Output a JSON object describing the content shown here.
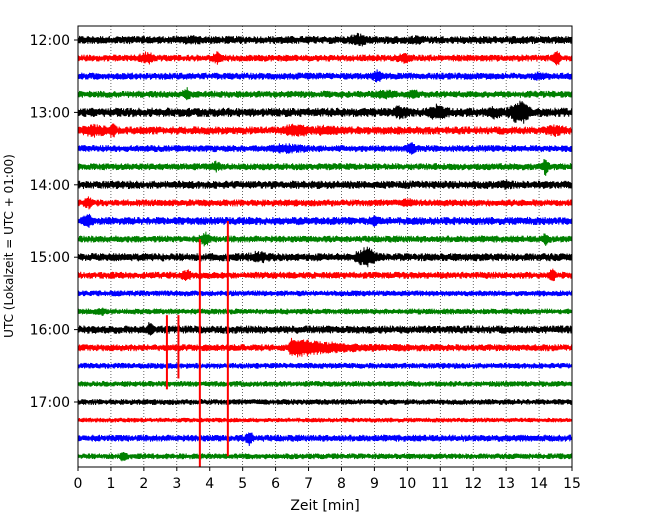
{
  "chart_data": {
    "type": "helicorder",
    "xlabel": "Zeit  [min]",
    "ylabel": "UTC (Lokalzeit = UTC + 01:00)",
    "xlim": [
      0,
      15
    ],
    "x_ticks": [
      "0",
      "1",
      "2",
      "3",
      "4",
      "5",
      "6",
      "7",
      "8",
      "9",
      "10",
      "11",
      "12",
      "13",
      "14",
      "15"
    ],
    "row_interval_min": 15,
    "row_start": "12:00",
    "y_tick_labels": [
      "12:00",
      "13:00",
      "14:00",
      "15:00",
      "16:00",
      "17:00"
    ],
    "y_tick_rows": [
      0,
      4,
      8,
      12,
      16,
      20
    ],
    "grid": "vertical dotted",
    "color_cycle": [
      "#000000",
      "#ff0000",
      "#0000ff",
      "#008000"
    ],
    "rows": [
      {
        "start": "12:00",
        "color": "#000000",
        "noise": 0.35,
        "events": [
          {
            "t": 8.5,
            "amp": 0.45,
            "dur": 0.3
          },
          {
            "t": 10.3,
            "amp": 0.3,
            "dur": 0.2
          },
          {
            "t": 3.5,
            "amp": 0.15,
            "dur": 0.4
          }
        ]
      },
      {
        "start": "12:15",
        "color": "#ff0000",
        "noise": 0.3,
        "events": [
          {
            "t": 2.1,
            "amp": 0.5,
            "dur": 0.3
          },
          {
            "t": 4.25,
            "amp": 0.45,
            "dur": 0.2
          },
          {
            "t": 9.9,
            "amp": 0.35,
            "dur": 0.3
          },
          {
            "t": 14.55,
            "amp": 0.8,
            "dur": 0.15
          }
        ]
      },
      {
        "start": "12:30",
        "color": "#0000ff",
        "noise": 0.3,
        "events": [
          {
            "t": 9.1,
            "amp": 0.45,
            "dur": 0.2
          },
          {
            "t": 14.0,
            "amp": 0.2,
            "dur": 0.3
          }
        ]
      },
      {
        "start": "12:45",
        "color": "#008000",
        "noise": 0.3,
        "events": [
          {
            "t": 3.3,
            "amp": 0.6,
            "dur": 0.15
          },
          {
            "t": 9.3,
            "amp": 0.25,
            "dur": 0.4
          },
          {
            "t": 10.2,
            "amp": 0.3,
            "dur": 0.2
          }
        ]
      },
      {
        "start": "13:00",
        "color": "#000000",
        "noise": 0.4,
        "events": [
          {
            "t": 9.8,
            "amp": 0.45,
            "dur": 0.3
          },
          {
            "t": 10.9,
            "amp": 0.55,
            "dur": 0.4
          },
          {
            "t": 12.6,
            "amp": 0.35,
            "dur": 0.3
          },
          {
            "t": 13.3,
            "amp": 0.8,
            "dur": 0.3
          },
          {
            "t": 13.55,
            "amp": 0.9,
            "dur": 0.25
          }
        ]
      },
      {
        "start": "13:15",
        "color": "#ff0000",
        "noise": 0.35,
        "events": [
          {
            "t": 0.5,
            "amp": 0.45,
            "dur": 0.5
          },
          {
            "t": 1.05,
            "amp": 0.65,
            "dur": 0.15
          },
          {
            "t": 6.6,
            "amp": 0.55,
            "dur": 0.5
          },
          {
            "t": 7.5,
            "amp": 0.3,
            "dur": 0.5
          },
          {
            "t": 14.5,
            "amp": 0.3,
            "dur": 0.4
          }
        ]
      },
      {
        "start": "13:30",
        "color": "#0000ff",
        "noise": 0.3,
        "events": [
          {
            "t": 6.3,
            "amp": 0.3,
            "dur": 0.8
          },
          {
            "t": 10.1,
            "amp": 0.55,
            "dur": 0.2
          }
        ]
      },
      {
        "start": "13:45",
        "color": "#008000",
        "noise": 0.3,
        "events": [
          {
            "t": 4.2,
            "amp": 0.35,
            "dur": 0.2
          },
          {
            "t": 14.2,
            "amp": 0.8,
            "dur": 0.15
          }
        ]
      },
      {
        "start": "14:00",
        "color": "#000000",
        "noise": 0.35,
        "events": [
          {
            "t": 13.0,
            "amp": 0.25,
            "dur": 0.2
          }
        ]
      },
      {
        "start": "14:15",
        "color": "#ff0000",
        "noise": 0.3,
        "events": [
          {
            "t": 0.3,
            "amp": 0.5,
            "dur": 0.2
          },
          {
            "t": 10.0,
            "amp": 0.3,
            "dur": 0.2
          }
        ]
      },
      {
        "start": "14:30",
        "color": "#0000ff",
        "noise": 0.35,
        "events": [
          {
            "t": 0.3,
            "amp": 0.6,
            "dur": 0.2
          },
          {
            "t": 9.0,
            "amp": 0.45,
            "dur": 0.2
          }
        ]
      },
      {
        "start": "14:45",
        "color": "#008000",
        "noise": 0.3,
        "events": [
          {
            "t": 3.85,
            "amp": 0.6,
            "dur": 0.2
          },
          {
            "t": 14.2,
            "amp": 0.55,
            "dur": 0.15
          }
        ]
      },
      {
        "start": "15:00",
        "color": "#000000",
        "noise": 0.35,
        "events": [
          {
            "t": 5.5,
            "amp": 0.35,
            "dur": 0.4
          },
          {
            "t": 8.75,
            "amp": 0.9,
            "dur": 0.4
          }
        ]
      },
      {
        "start": "15:15",
        "color": "#ff0000",
        "noise": 0.3,
        "events": [
          {
            "t": 3.3,
            "amp": 0.45,
            "dur": 0.2
          },
          {
            "t": 14.4,
            "amp": 0.5,
            "dur": 0.15
          }
        ]
      },
      {
        "start": "15:30",
        "color": "#0000ff",
        "noise": 0.25,
        "events": []
      },
      {
        "start": "15:45",
        "color": "#008000",
        "noise": 0.25,
        "events": [
          {
            "t": 0.7,
            "amp": 0.25,
            "dur": 0.2
          }
        ]
      },
      {
        "start": "16:00",
        "color": "#000000",
        "noise": 0.35,
        "events": [
          {
            "t": 2.2,
            "amp": 0.6,
            "dur": 0.15
          }
        ]
      },
      {
        "start": "16:15",
        "color": "#ff0000",
        "noise": 0.3,
        "events": [
          {
            "t": 6.5,
            "amp": 1.0,
            "dur": 3.0,
            "decay": true
          }
        ]
      },
      {
        "start": "16:30",
        "color": "#0000ff",
        "noise": 0.25,
        "events": []
      },
      {
        "start": "16:45",
        "color": "#008000",
        "noise": 0.25,
        "events": []
      },
      {
        "start": "17:00",
        "color": "#000000",
        "noise": 0.25,
        "events": []
      },
      {
        "start": "17:15",
        "color": "#ff0000",
        "noise": 0.2,
        "events": []
      },
      {
        "start": "17:30",
        "color": "#0000ff",
        "noise": 0.3,
        "events": [
          {
            "t": 5.2,
            "amp": 0.7,
            "dur": 0.15
          }
        ]
      },
      {
        "start": "17:45",
        "color": "#008000",
        "noise": 0.25,
        "events": [
          {
            "t": 1.4,
            "amp": 0.45,
            "dur": 0.15
          }
        ]
      }
    ],
    "spikes": [
      {
        "t": 2.7,
        "color": "#ff0000",
        "from_row": 15.2,
        "to_row": 19.3
      },
      {
        "t": 3.05,
        "color": "#ff0000",
        "from_row": 15.2,
        "to_row": 18.7
      },
      {
        "t": 3.7,
        "color": "#ff0000",
        "from_row": 11.0,
        "to_row": 23.6
      },
      {
        "t": 4.55,
        "color": "#ff0000",
        "from_row": 10.0,
        "to_row": 23.0
      }
    ]
  }
}
